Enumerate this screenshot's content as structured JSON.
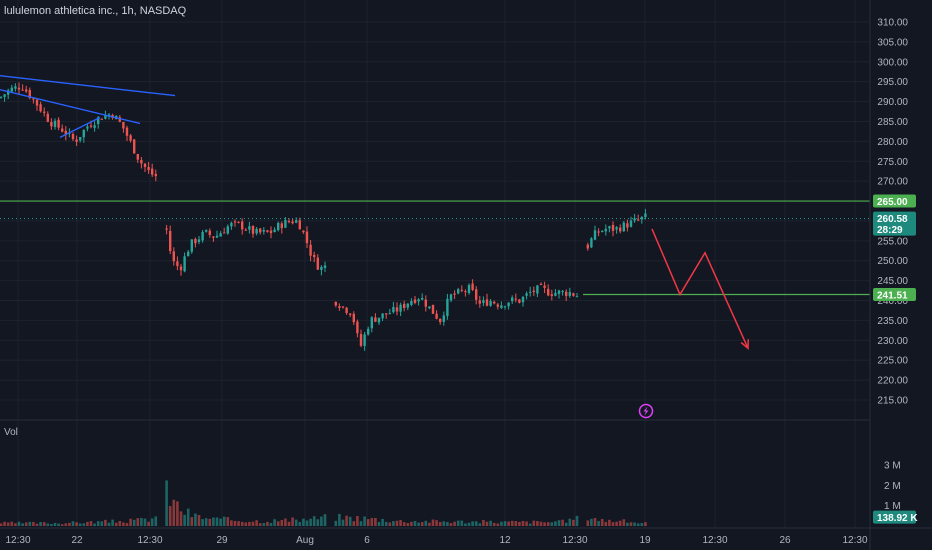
{
  "header": {
    "title": "lululemon athletica inc., 1h, NASDAQ"
  },
  "volume_pane": {
    "title": "Vol"
  },
  "colors": {
    "background": "#131722",
    "grid": "#1e222d",
    "up": "#26a69a",
    "down": "#ef5350",
    "level": "#4caf50",
    "trend": "#2962ff",
    "projection": "#f23645",
    "badge_green": "#4caf50",
    "badge_teal": "#1e8a7e",
    "icon_circle": "#e040fb"
  },
  "chart_data": {
    "type": "candlestick",
    "title": "lululemon athletica inc., 1h, NASDAQ",
    "price_ticks": [
      "310.00",
      "305.00",
      "300.00",
      "295.00",
      "290.00",
      "285.00",
      "280.00",
      "275.00",
      "270.00",
      "265.00",
      "260.00",
      "255.00",
      "250.00",
      "245.00",
      "240.00",
      "235.00",
      "230.00",
      "225.00",
      "220.00",
      "215.00"
    ],
    "volume_ticks": [
      "3 M",
      "2 M",
      "1 M"
    ],
    "x_ticks": [
      "12:30",
      "22",
      "12:30",
      "29",
      "Aug",
      "6",
      "12",
      "12:30",
      "19",
      "12:30",
      "26",
      "12:30"
    ],
    "price_range": [
      213,
      311
    ],
    "volume_range": [
      0,
      3200000
    ],
    "grid": true,
    "levels": [
      {
        "price": 265.0,
        "label": "265.00"
      },
      {
        "price": 241.51,
        "label": "241.51"
      }
    ],
    "last_price": {
      "price": 260.58,
      "label": "260.58",
      "countdown": "28:29"
    },
    "last_volume": {
      "value": 138920,
      "label": "138.92 K"
    },
    "price_path": [
      [
        0,
        291
      ],
      [
        10,
        293
      ],
      [
        22,
        294
      ],
      [
        35,
        290
      ],
      [
        50,
        285
      ],
      [
        62,
        283
      ],
      [
        75,
        280
      ],
      [
        88,
        284
      ],
      [
        100,
        286
      ],
      [
        112,
        287
      ],
      [
        122,
        284
      ],
      [
        130,
        280
      ],
      [
        140,
        275
      ],
      [
        150,
        272
      ],
      [
        158,
        271
      ],
      [
        165,
        260
      ],
      [
        172,
        250
      ],
      [
        180,
        248
      ],
      [
        190,
        254
      ],
      [
        205,
        257
      ],
      [
        215,
        256
      ],
      [
        230,
        259
      ],
      [
        240,
        259
      ],
      [
        255,
        257
      ],
      [
        270,
        257
      ],
      [
        280,
        259
      ],
      [
        290,
        260
      ],
      [
        298,
        260
      ],
      [
        305,
        256
      ],
      [
        312,
        251
      ],
      [
        320,
        248
      ],
      [
        328,
        249
      ],
      [
        335,
        240
      ],
      [
        345,
        238
      ],
      [
        352,
        237
      ],
      [
        360,
        228
      ],
      [
        370,
        235
      ],
      [
        380,
        236
      ],
      [
        390,
        237
      ],
      [
        400,
        238
      ],
      [
        410,
        240
      ],
      [
        420,
        241
      ],
      [
        430,
        238
      ],
      [
        440,
        235
      ],
      [
        450,
        241
      ],
      [
        460,
        242
      ],
      [
        470,
        243
      ],
      [
        480,
        239
      ],
      [
        490,
        240
      ],
      [
        500,
        239
      ],
      [
        510,
        240
      ],
      [
        520,
        240
      ],
      [
        530,
        242
      ],
      [
        540,
        243
      ],
      [
        550,
        242
      ],
      [
        560,
        242
      ],
      [
        570,
        242
      ],
      [
        580,
        241
      ],
      [
        588,
        254
      ],
      [
        596,
        257
      ],
      [
        606,
        258
      ],
      [
        616,
        258
      ],
      [
        626,
        259
      ],
      [
        636,
        260
      ],
      [
        646,
        261
      ]
    ],
    "volume_path": [
      [
        0,
        0.15
      ],
      [
        60,
        0.15
      ],
      [
        130,
        0.25
      ],
      [
        150,
        0.35
      ],
      [
        160,
        0.55
      ],
      [
        165,
        1.75
      ],
      [
        175,
        1.1
      ],
      [
        185,
        0.7
      ],
      [
        195,
        0.5
      ],
      [
        210,
        0.35
      ],
      [
        260,
        0.25
      ],
      [
        300,
        0.3
      ],
      [
        330,
        0.45
      ],
      [
        360,
        0.4
      ],
      [
        400,
        0.25
      ],
      [
        500,
        0.2
      ],
      [
        560,
        0.2
      ],
      [
        590,
        0.5
      ],
      [
        600,
        0.3
      ],
      [
        620,
        0.25
      ],
      [
        646,
        0.14
      ]
    ],
    "trendlines": [
      {
        "from": [
          0,
          296.5
        ],
        "to": [
          175,
          291.5
        ]
      },
      {
        "from": [
          0,
          293
        ],
        "to": [
          140,
          284.5
        ]
      },
      {
        "from": [
          60,
          281
        ],
        "to": [
          100,
          286
        ]
      }
    ],
    "projection": [
      [
        652,
        258
      ],
      [
        680,
        241.5
      ],
      [
        705,
        252
      ],
      [
        748,
        228
      ]
    ]
  }
}
